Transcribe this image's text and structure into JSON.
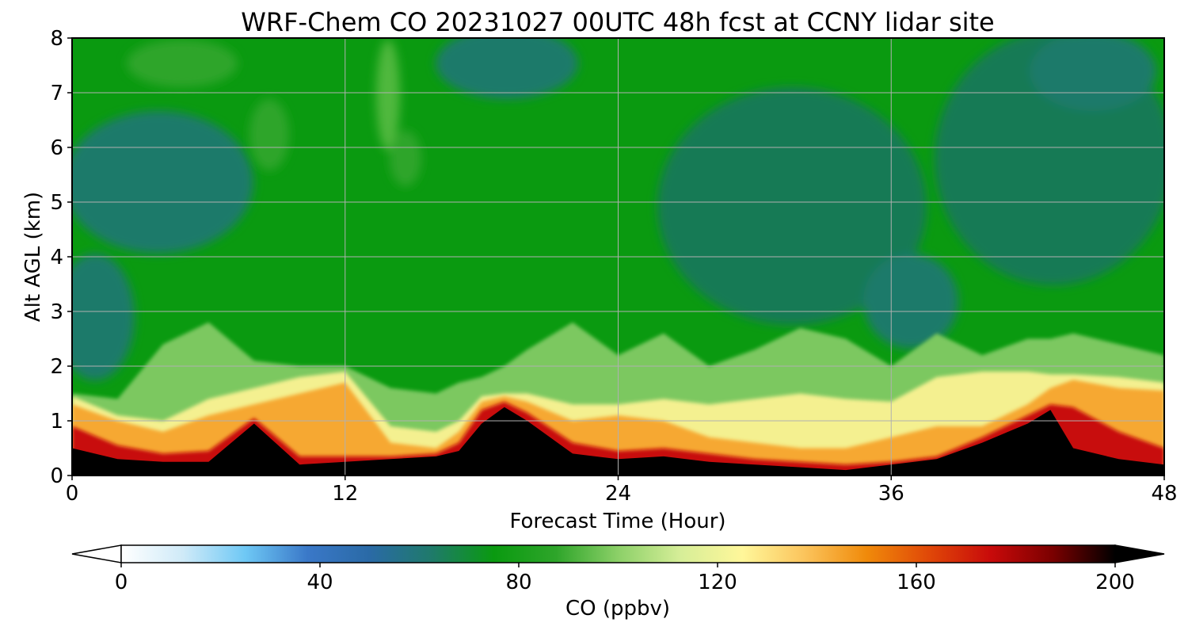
{
  "chart_data": {
    "type": "heatmap",
    "title": "WRF-Chem CO  20231027 00UTC 48h fcst at CCNY lidar site",
    "xlabel": "Forecast Time (Hour)",
    "ylabel": "Alt AGL (km)",
    "xlim": [
      0,
      48
    ],
    "ylim": [
      0,
      8
    ],
    "xticks": [
      0,
      12,
      24,
      36,
      48
    ],
    "yticks": [
      0,
      1,
      2,
      3,
      4,
      5,
      6,
      7,
      8
    ],
    "grid": true,
    "colorbar": {
      "label": "CO  (ppbv)",
      "orientation": "horizontal",
      "placement": "bottom",
      "range": [
        0,
        200
      ],
      "ticks": [
        0,
        40,
        80,
        120,
        160,
        200
      ],
      "extend": "both",
      "colors": [
        "#ffffff",
        "#cfeaf8",
        "#6ec8f5",
        "#3a78c8",
        "#2a6aa6",
        "#1f7a6a",
        "#0a9a10",
        "#2ea52a",
        "#8cd068",
        "#d6ee98",
        "#fff79a",
        "#fbc45c",
        "#f08a0a",
        "#e04808",
        "#c80a0a",
        "#7a0000",
        "#000000"
      ]
    },
    "profile_hours": [
      0,
      2,
      4,
      6,
      8,
      10,
      12,
      14,
      16,
      17,
      18,
      19,
      20,
      22,
      24,
      26,
      28,
      30,
      32,
      34,
      36,
      38,
      40,
      42,
      43,
      44,
      46,
      48
    ],
    "black_layer_top_km": [
      0.5,
      0.3,
      0.25,
      0.25,
      0.95,
      0.2,
      0.25,
      0.3,
      0.35,
      0.45,
      0.95,
      1.25,
      1.0,
      0.4,
      0.3,
      0.35,
      0.25,
      0.2,
      0.15,
      0.1,
      0.2,
      0.3,
      0.6,
      0.95,
      1.2,
      0.5,
      0.3,
      0.2
    ],
    "red_layer_top_km": [
      0.9,
      0.55,
      0.4,
      0.45,
      1.05,
      0.35,
      0.35,
      0.35,
      0.4,
      0.6,
      1.2,
      1.35,
      1.15,
      0.6,
      0.45,
      0.5,
      0.4,
      0.3,
      0.25,
      0.2,
      0.25,
      0.35,
      0.7,
      1.1,
      1.3,
      1.25,
      0.8,
      0.5
    ],
    "orange_layer_top_km": [
      1.3,
      1.0,
      0.8,
      1.1,
      1.3,
      1.5,
      1.7,
      0.6,
      0.5,
      0.8,
      1.35,
      1.45,
      1.35,
      1.0,
      1.1,
      1.0,
      0.7,
      0.6,
      0.5,
      0.5,
      0.7,
      0.9,
      0.9,
      1.3,
      1.6,
      1.75,
      1.6,
      1.55
    ],
    "yellow_layer_top_km": [
      1.45,
      1.1,
      1.0,
      1.4,
      1.6,
      1.8,
      1.9,
      0.9,
      0.8,
      1.0,
      1.45,
      1.5,
      1.5,
      1.3,
      1.3,
      1.4,
      1.3,
      1.4,
      1.5,
      1.4,
      1.35,
      1.8,
      1.9,
      1.9,
      1.85,
      1.85,
      1.8,
      1.7
    ],
    "light_green_layer_top_km": [
      1.5,
      1.4,
      2.4,
      2.8,
      2.1,
      2.0,
      2.0,
      1.6,
      1.5,
      1.7,
      1.8,
      2.0,
      2.3,
      2.8,
      2.2,
      2.6,
      2.0,
      2.3,
      2.7,
      2.5,
      2.0,
      2.6,
      2.2,
      2.5,
      2.5,
      2.6,
      2.4,
      2.2
    ],
    "background_level_ppbv": 75
  }
}
